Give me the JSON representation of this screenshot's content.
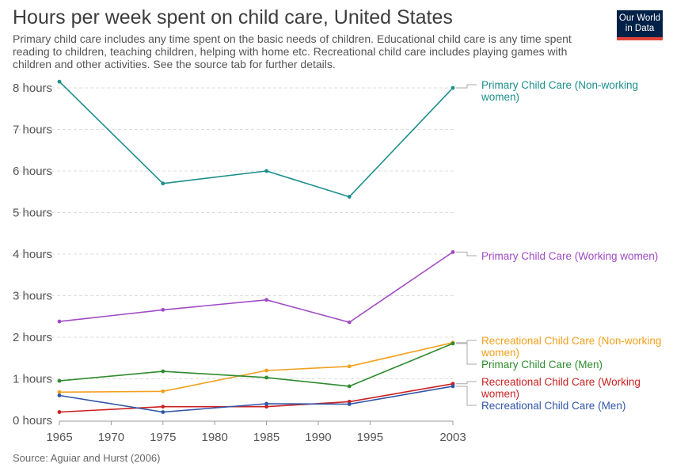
{
  "header": {
    "title": "Hours per week spent on child care, United States",
    "subtitle": "Primary child care includes any time spent on the basic needs of children. Educational child care is any time spent reading to children, teaching children, helping with home etc. Recreational child care includes playing games with children and other activities. See the source tab for further details."
  },
  "logo": {
    "line1": "Our World",
    "line2": "in Data"
  },
  "footer": {
    "source": "Source: Aguiar and Hurst (2006)"
  },
  "colors": {
    "gridline": "#dddddd",
    "axis_text": "#555555"
  },
  "chart_data": {
    "type": "line",
    "title": "Hours per week spent on child care, United States",
    "xlabel": "",
    "ylabel": "",
    "xlim": [
      1965,
      2003
    ],
    "ylim": [
      0,
      8
    ],
    "grid": true,
    "legend_placement": "right, inline labels at line ends",
    "x_ticks": [
      1965,
      1970,
      1975,
      1980,
      1985,
      1990,
      1995,
      2003
    ],
    "x_tick_labels": [
      "1965",
      "1970",
      "1975",
      "1980",
      "1985",
      "1990",
      "1995",
      "2003"
    ],
    "y_ticks": [
      0,
      1,
      2,
      3,
      4,
      5,
      6,
      7,
      8
    ],
    "y_tick_labels": [
      "0 hours",
      "1 hours",
      "2 hours",
      "3 hours",
      "4 hours",
      "5 hours",
      "6 hours",
      "7 hours",
      "8 hours"
    ],
    "x": [
      1965,
      1975,
      1985,
      1993,
      2003
    ],
    "series": [
      {
        "name": "Primary Child Care (Non-working women)",
        "color": "#1b8f8c",
        "values": [
          8.15,
          5.7,
          6.0,
          5.38,
          8.0
        ]
      },
      {
        "name": "Primary Child Care (Working women)",
        "color": "#a04bc4",
        "values": [
          2.38,
          2.66,
          2.9,
          2.36,
          4.05
        ]
      },
      {
        "name": "Recreational Child Care (Non-working women)",
        "color": "#f2a01d",
        "values": [
          0.68,
          0.7,
          1.2,
          1.3,
          1.87
        ]
      },
      {
        "name": "Primary Child Care (Men)",
        "color": "#2e8b2e",
        "values": [
          0.95,
          1.18,
          1.03,
          0.82,
          1.85
        ]
      },
      {
        "name": "Recreational Child Care (Working women)",
        "color": "#cc2020",
        "values": [
          0.2,
          0.33,
          0.33,
          0.45,
          0.88
        ]
      },
      {
        "name": "Recreational Child Care (Men)",
        "color": "#3056a8",
        "values": [
          0.6,
          0.2,
          0.4,
          0.39,
          0.82
        ]
      }
    ]
  }
}
